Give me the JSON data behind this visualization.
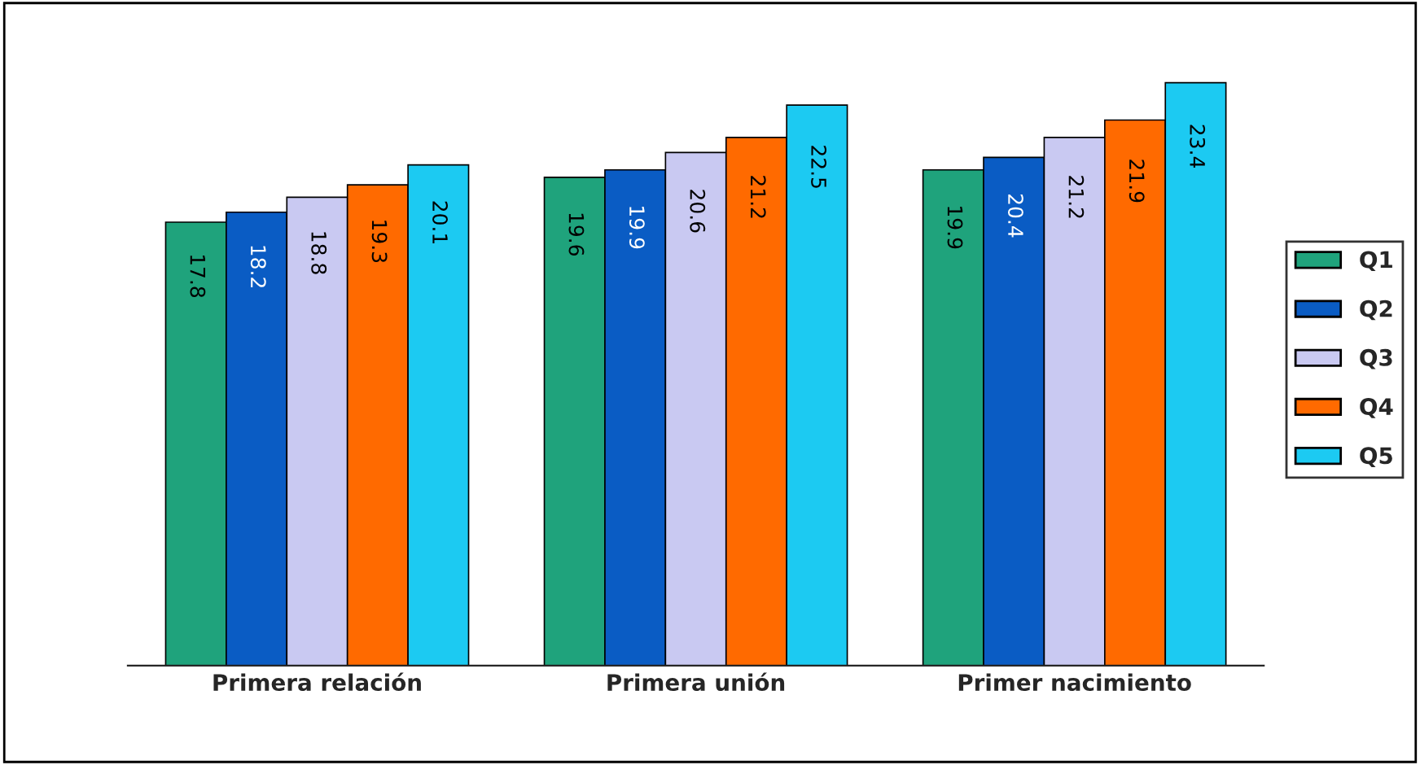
{
  "chart_data": {
    "type": "bar",
    "categories": [
      "Primera relación",
      "Primera unión",
      "Primer nacimiento"
    ],
    "series": [
      {
        "name": "Q1",
        "color": "#1fa37c",
        "values": [
          17.8,
          19.6,
          19.9
        ]
      },
      {
        "name": "Q2",
        "color": "#0a5cc4",
        "values": [
          18.2,
          19.9,
          20.4
        ]
      },
      {
        "name": "Q3",
        "color": "#c9c9f2",
        "values": [
          18.8,
          20.6,
          21.2
        ]
      },
      {
        "name": "Q4",
        "color": "#ff6a00",
        "values": [
          19.3,
          21.2,
          21.9
        ]
      },
      {
        "name": "Q5",
        "color": "#1ccaf2",
        "values": [
          20.1,
          22.5,
          23.4
        ]
      }
    ],
    "data_labels": true,
    "legend": "right",
    "grid": false
  }
}
